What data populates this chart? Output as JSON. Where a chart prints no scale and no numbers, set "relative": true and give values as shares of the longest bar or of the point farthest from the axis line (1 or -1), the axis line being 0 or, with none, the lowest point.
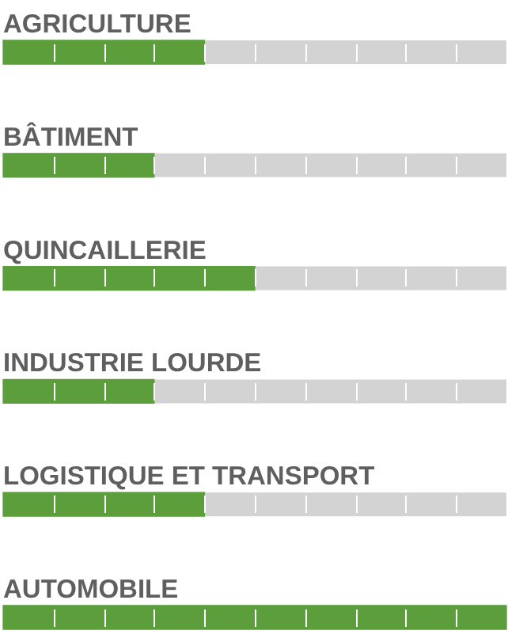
{
  "chart_data": {
    "type": "bar",
    "orientation": "horizontal",
    "relative": true,
    "categories": [
      "AGRICULTURE",
      "BÂTIMENT",
      "QUINCAILLERIE",
      "INDUSTRIE LOURDE",
      "LOGISTIQUE ET TRANSPORT",
      "AUTOMOBILE"
    ],
    "values": [
      0.4,
      0.3,
      0.5,
      0.3,
      0.4,
      1
    ],
    "color": "#5c9e3c"
  }
}
